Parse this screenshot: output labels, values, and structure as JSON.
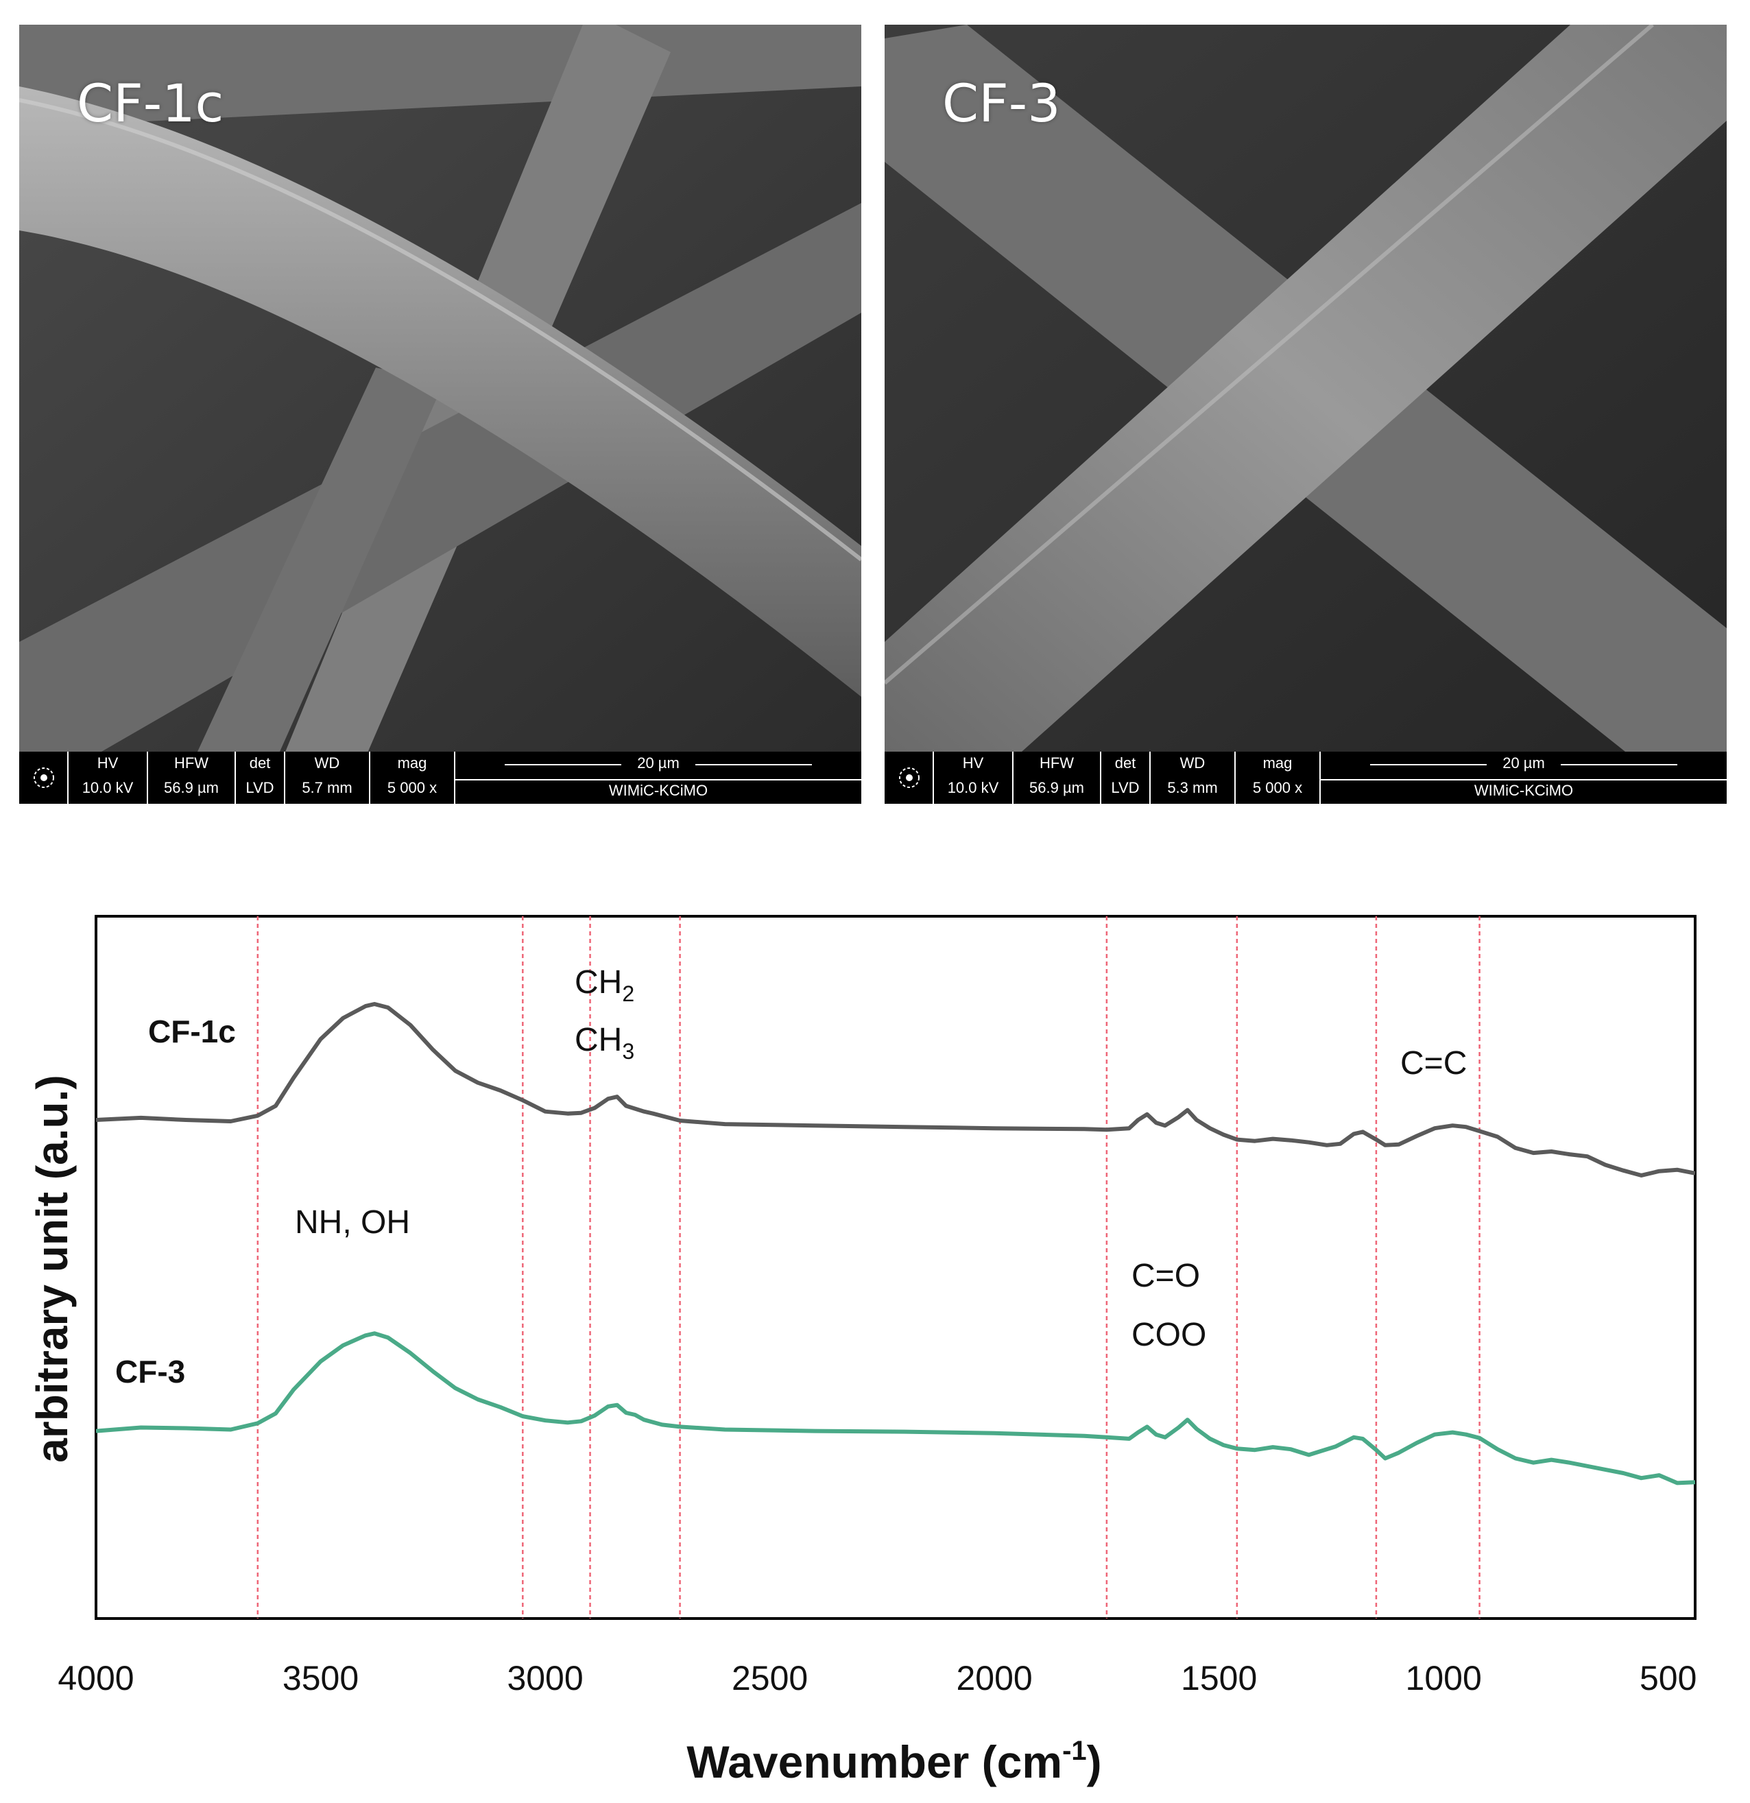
{
  "sem_panels": [
    {
      "label": "CF-1c",
      "databar": {
        "headers": [
          "HV",
          "HFW",
          "det",
          "WD",
          "mag"
        ],
        "values": [
          "10.0 kV",
          "56.9 µm",
          "LVD",
          "5.7 mm",
          "5 000 x"
        ],
        "scale_label": "20 µm",
        "institution": "WIMiC-KCiMO"
      }
    },
    {
      "label": "CF-3",
      "databar": {
        "headers": [
          "HV",
          "HFW",
          "det",
          "WD",
          "mag"
        ],
        "values": [
          "10.0 kV",
          "56.9 µm",
          "LVD",
          "5.3 mm",
          "5 000 x"
        ],
        "scale_label": "20 µm",
        "institution": "WIMiC-KCiMO"
      }
    }
  ],
  "chart_data": {
    "type": "line",
    "xlabel": "Wavenumber (cm",
    "xlabel_sup": "-1",
    "xlabel_end": ")",
    "ylabel": "arbitrary unit (a.u.)",
    "xlim": [
      4000,
      440
    ],
    "ylim": [
      0,
      100
    ],
    "x_ticks": [
      4000,
      3500,
      3000,
      2500,
      2000,
      1500,
      1000,
      500
    ],
    "x_tick_labels": [
      "4000",
      "3500",
      "3000",
      "2500",
      "2000",
      "1500",
      "1000",
      "500"
    ],
    "reference_lines": [
      3640,
      3050,
      2900,
      2700,
      1750,
      1460,
      1150,
      920
    ],
    "reference_line_color": "#ee6677",
    "series": [
      {
        "name": "CF-1c",
        "color": "#5a5a5a",
        "points": [
          [
            4000,
            71
          ],
          [
            3900,
            71.3
          ],
          [
            3800,
            71
          ],
          [
            3700,
            70.8
          ],
          [
            3640,
            71.6
          ],
          [
            3600,
            73
          ],
          [
            3560,
            77
          ],
          [
            3500,
            82.5
          ],
          [
            3450,
            85.5
          ],
          [
            3400,
            87.2
          ],
          [
            3380,
            87.5
          ],
          [
            3350,
            87
          ],
          [
            3300,
            84.5
          ],
          [
            3250,
            81
          ],
          [
            3200,
            78
          ],
          [
            3150,
            76.3
          ],
          [
            3100,
            75.2
          ],
          [
            3050,
            73.8
          ],
          [
            3000,
            72.2
          ],
          [
            2950,
            71.9
          ],
          [
            2920,
            72
          ],
          [
            2890,
            72.7
          ],
          [
            2860,
            74
          ],
          [
            2840,
            74.3
          ],
          [
            2820,
            73
          ],
          [
            2800,
            72.6
          ],
          [
            2780,
            72.2
          ],
          [
            2760,
            71.9
          ],
          [
            2700,
            70.9
          ],
          [
            2600,
            70.4
          ],
          [
            2400,
            70.2
          ],
          [
            2200,
            70
          ],
          [
            2000,
            69.8
          ],
          [
            1800,
            69.7
          ],
          [
            1750,
            69.6
          ],
          [
            1700,
            69.8
          ],
          [
            1680,
            71
          ],
          [
            1660,
            71.8
          ],
          [
            1640,
            70.6
          ],
          [
            1620,
            70.2
          ],
          [
            1590,
            71.4
          ],
          [
            1570,
            72.4
          ],
          [
            1550,
            71
          ],
          [
            1520,
            69.8
          ],
          [
            1490,
            68.9
          ],
          [
            1460,
            68.2
          ],
          [
            1420,
            68
          ],
          [
            1380,
            68.3
          ],
          [
            1340,
            68.1
          ],
          [
            1300,
            67.8
          ],
          [
            1260,
            67.4
          ],
          [
            1230,
            67.6
          ],
          [
            1200,
            69
          ],
          [
            1180,
            69.3
          ],
          [
            1150,
            68.2
          ],
          [
            1130,
            67.4
          ],
          [
            1100,
            67.5
          ],
          [
            1060,
            68.7
          ],
          [
            1020,
            69.8
          ],
          [
            980,
            70.2
          ],
          [
            950,
            70
          ],
          [
            920,
            69.4
          ],
          [
            880,
            68.6
          ],
          [
            840,
            67
          ],
          [
            800,
            66.3
          ],
          [
            760,
            66.5
          ],
          [
            720,
            66.1
          ],
          [
            680,
            65.8
          ],
          [
            640,
            64.6
          ],
          [
            600,
            63.8
          ],
          [
            560,
            63.1
          ],
          [
            520,
            63.7
          ],
          [
            480,
            63.9
          ],
          [
            440,
            63.4
          ]
        ]
      },
      {
        "name": "CF-3",
        "color": "#4aaa88",
        "points": [
          [
            4000,
            26.7
          ],
          [
            3900,
            27.2
          ],
          [
            3800,
            27.1
          ],
          [
            3700,
            26.9
          ],
          [
            3640,
            27.8
          ],
          [
            3600,
            29.2
          ],
          [
            3560,
            32.6
          ],
          [
            3500,
            36.6
          ],
          [
            3450,
            38.9
          ],
          [
            3400,
            40.3
          ],
          [
            3380,
            40.6
          ],
          [
            3350,
            40
          ],
          [
            3300,
            37.8
          ],
          [
            3250,
            35.2
          ],
          [
            3200,
            32.8
          ],
          [
            3150,
            31.2
          ],
          [
            3100,
            30.1
          ],
          [
            3050,
            28.8
          ],
          [
            3000,
            28.2
          ],
          [
            2950,
            27.9
          ],
          [
            2920,
            28.1
          ],
          [
            2890,
            28.9
          ],
          [
            2860,
            30.2
          ],
          [
            2840,
            30.4
          ],
          [
            2820,
            29.3
          ],
          [
            2800,
            29
          ],
          [
            2780,
            28.3
          ],
          [
            2740,
            27.6
          ],
          [
            2700,
            27.3
          ],
          [
            2600,
            26.9
          ],
          [
            2400,
            26.7
          ],
          [
            2200,
            26.6
          ],
          [
            2000,
            26.4
          ],
          [
            1800,
            26
          ],
          [
            1750,
            25.8
          ],
          [
            1700,
            25.6
          ],
          [
            1680,
            26.5
          ],
          [
            1660,
            27.3
          ],
          [
            1640,
            26.2
          ],
          [
            1620,
            25.8
          ],
          [
            1590,
            27.2
          ],
          [
            1570,
            28.3
          ],
          [
            1550,
            27
          ],
          [
            1520,
            25.6
          ],
          [
            1490,
            24.7
          ],
          [
            1460,
            24.2
          ],
          [
            1420,
            24
          ],
          [
            1380,
            24.4
          ],
          [
            1340,
            24.1
          ],
          [
            1300,
            23.3
          ],
          [
            1270,
            23.9
          ],
          [
            1240,
            24.5
          ],
          [
            1200,
            25.8
          ],
          [
            1180,
            25.6
          ],
          [
            1150,
            24
          ],
          [
            1130,
            22.8
          ],
          [
            1100,
            23.6
          ],
          [
            1060,
            25
          ],
          [
            1020,
            26.2
          ],
          [
            980,
            26.5
          ],
          [
            950,
            26.2
          ],
          [
            920,
            25.7
          ],
          [
            880,
            24.1
          ],
          [
            840,
            22.8
          ],
          [
            800,
            22.2
          ],
          [
            760,
            22.6
          ],
          [
            720,
            22.2
          ],
          [
            680,
            21.7
          ],
          [
            640,
            21.2
          ],
          [
            600,
            20.7
          ],
          [
            560,
            20
          ],
          [
            520,
            20.4
          ],
          [
            480,
            19.3
          ],
          [
            440,
            19.4
          ]
        ]
      }
    ],
    "annotations": [
      {
        "text": "CF-1c",
        "bold": true
      },
      {
        "text": "CF-3",
        "bold": true
      },
      {
        "text": "CH",
        "sub": "2"
      },
      {
        "text": "CH",
        "sub": "3"
      },
      {
        "text": "C=C"
      },
      {
        "text": "NH, OH"
      },
      {
        "text": "C=O"
      },
      {
        "text": "COO"
      }
    ],
    "grid": false,
    "legend": "none"
  }
}
